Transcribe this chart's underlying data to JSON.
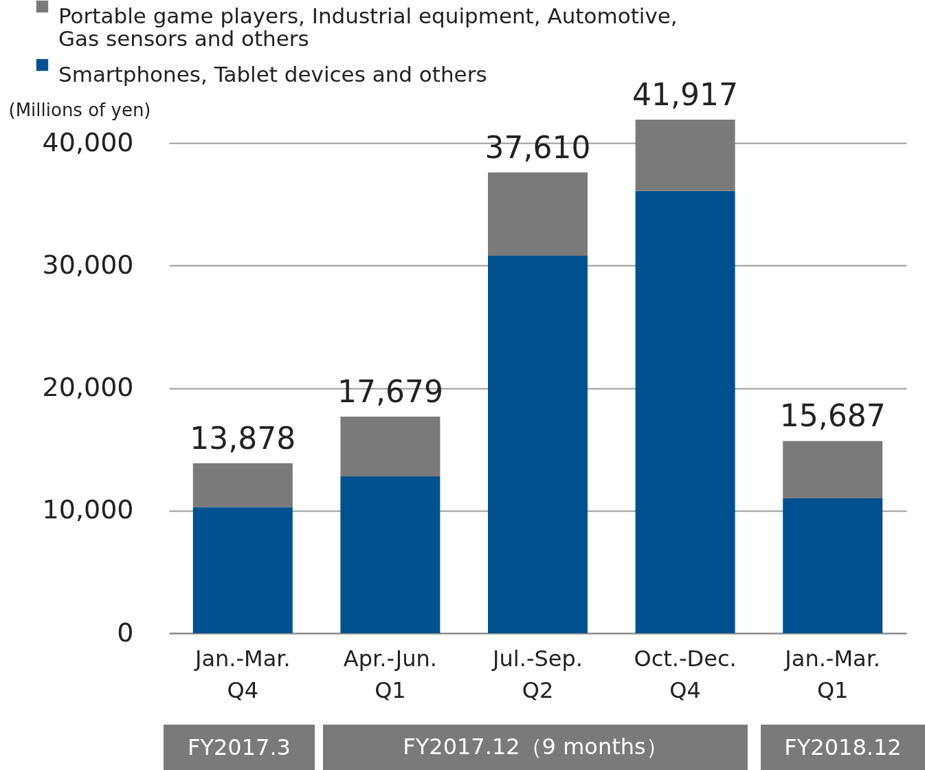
{
  "chart_data": {
    "type": "bar",
    "stacked": true,
    "ylabel": "(Millions of yen)",
    "categories": [
      "Jan.-Mar.\nQ4",
      "Apr.-Jun.\nQ1",
      "Jul.-Sep.\nQ2",
      "Oct.-Dec.\nQ4",
      "Jan.-Mar.\nQ1"
    ],
    "series": [
      {
        "name": "Smartphones, Tablet devices and others",
        "color": "#00518f",
        "values": [
          10300,
          12800,
          30800,
          36100,
          11000
        ]
      },
      {
        "name": "Portable game players, Industrial equipment, Automotive, Gas sensors and others",
        "color": "#7a7a7a",
        "values": [
          3578,
          4879,
          6810,
          5817,
          4687
        ]
      }
    ],
    "totals": [
      "13,878",
      "17,679",
      "37,610",
      "41,917",
      "15,687"
    ],
    "annotations": [
      "FY2017.3",
      "FY2017.12（9 months）",
      "FY2018.12"
    ],
    "ylim": [
      0,
      41917
    ],
    "yticks": [
      0,
      {
        "value": 10000,
        "label": "10,000"
      },
      {
        "value": 20000,
        "label": "20,000"
      },
      {
        "value": 30000,
        "label": "30,000"
      },
      {
        "value": 40000,
        "label": "40,000"
      }
    ],
    "grid": "y",
    "legend": "top left"
  }
}
